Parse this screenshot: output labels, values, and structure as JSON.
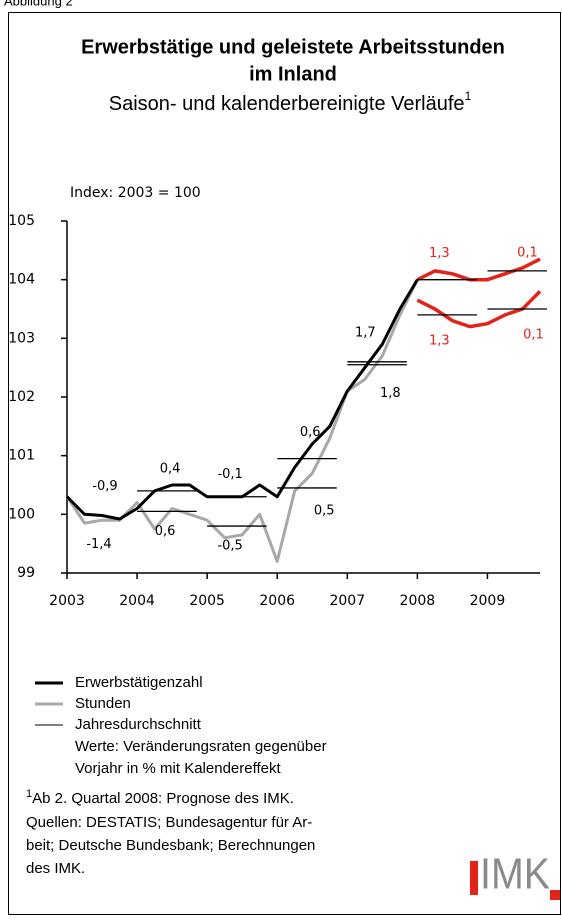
{
  "figure_label": "Abbildung 2",
  "chart_data": {
    "type": "line",
    "title": [
      "Erwerbstätige und geleistete Arbeitsstunden",
      "im Inland"
    ],
    "subtitle": "Saison- und kalenderbereinigte Verläufe",
    "subtitle_note": "1",
    "y_label": "Index: 2003 = 100",
    "xlim": [
      2003,
      2009.75
    ],
    "xticks": [
      2003,
      2004,
      2005,
      2006,
      2007,
      2008,
      2009
    ],
    "ylim": [
      99,
      105
    ],
    "yticks": [
      99,
      100,
      101,
      102,
      103,
      104,
      105
    ],
    "series": [
      {
        "name": "Erwerbstätigenzahl",
        "color": "#000000",
        "x": [
          2003,
          2003.25,
          2003.5,
          2003.75,
          2004,
          2004.25,
          2004.5,
          2004.75,
          2005,
          2005.25,
          2005.5,
          2005.75,
          2006,
          2006.25,
          2006.5,
          2006.75,
          2007,
          2007.25,
          2007.5,
          2007.75,
          2008
        ],
        "values": [
          100.3,
          100.0,
          99.98,
          99.92,
          100.1,
          100.4,
          100.5,
          100.5,
          100.3,
          100.3,
          100.3,
          100.5,
          100.3,
          100.8,
          101.2,
          101.5,
          102.1,
          102.5,
          102.9,
          103.5,
          104.0
        ]
      },
      {
        "name": "Stunden",
        "color": "#a8a8a8",
        "x": [
          2003,
          2003.25,
          2003.5,
          2003.75,
          2004,
          2004.25,
          2004.5,
          2004.75,
          2005,
          2005.25,
          2005.5,
          2005.75,
          2006,
          2006.25,
          2006.5,
          2006.75,
          2007,
          2007.25,
          2007.5,
          2007.75,
          2008
        ],
        "values": [
          100.3,
          99.85,
          99.9,
          99.9,
          100.2,
          99.75,
          100.1,
          100.0,
          99.9,
          99.6,
          99.65,
          100.0,
          99.2,
          100.4,
          100.7,
          101.3,
          102.1,
          102.3,
          102.7,
          103.4,
          104.0
        ]
      }
    ],
    "forecast": [
      {
        "color": "#e2231a",
        "x": [
          2008,
          2008.25,
          2008.5,
          2008.75,
          2009,
          2009.25,
          2009.5,
          2009.75
        ],
        "values": [
          104.0,
          104.15,
          104.1,
          104.0,
          104.0,
          104.1,
          104.2,
          104.35
        ]
      },
      {
        "color": "#e2231a",
        "x": [
          2008,
          2008.25,
          2008.5,
          2008.75,
          2009,
          2009.25,
          2009.5,
          2009.75
        ],
        "values": [
          103.65,
          103.5,
          103.3,
          103.2,
          103.25,
          103.4,
          103.5,
          103.8
        ]
      }
    ],
    "annual_average": {
      "name": "Jahresdurchschnitt",
      "color": "#000000",
      "years": [
        2003,
        2004,
        2005,
        2006,
        2007,
        2008,
        2009
      ],
      "employment": [
        100.0,
        100.4,
        100.3,
        100.95,
        102.6,
        104.0,
        104.15
      ],
      "hours": [
        100.0,
        100.05,
        99.8,
        100.45,
        102.55,
        103.4,
        103.5
      ],
      "employment_rates": [
        "-0,9",
        "0,4",
        "-0,1",
        "0,6",
        "1,7",
        "1,3",
        "0,1"
      ],
      "hours_rates": [
        "-1,4",
        "0,6",
        "-0,5",
        "0,5",
        "1,8",
        "1,3",
        "0,1"
      ],
      "rate_colors": [
        "#000000",
        "#000000",
        "#000000",
        "#000000",
        "#000000",
        "#e2231a",
        "#e2231a"
      ]
    },
    "legend_note": [
      "Werte: Veränderungsraten gegenüber",
      "Vorjahr in % mit Kalendereffekt"
    ]
  },
  "footnote": {
    "mark": "1",
    "text": "Ab 2. Quartal 2008: Prognose des IMK."
  },
  "sources": [
    "Quellen: DESTATIS; Bundesagentur für Ar-",
    "beit; Deutsche Bundesbank; Berechnungen",
    "des IMK."
  ],
  "logo": "IMK"
}
